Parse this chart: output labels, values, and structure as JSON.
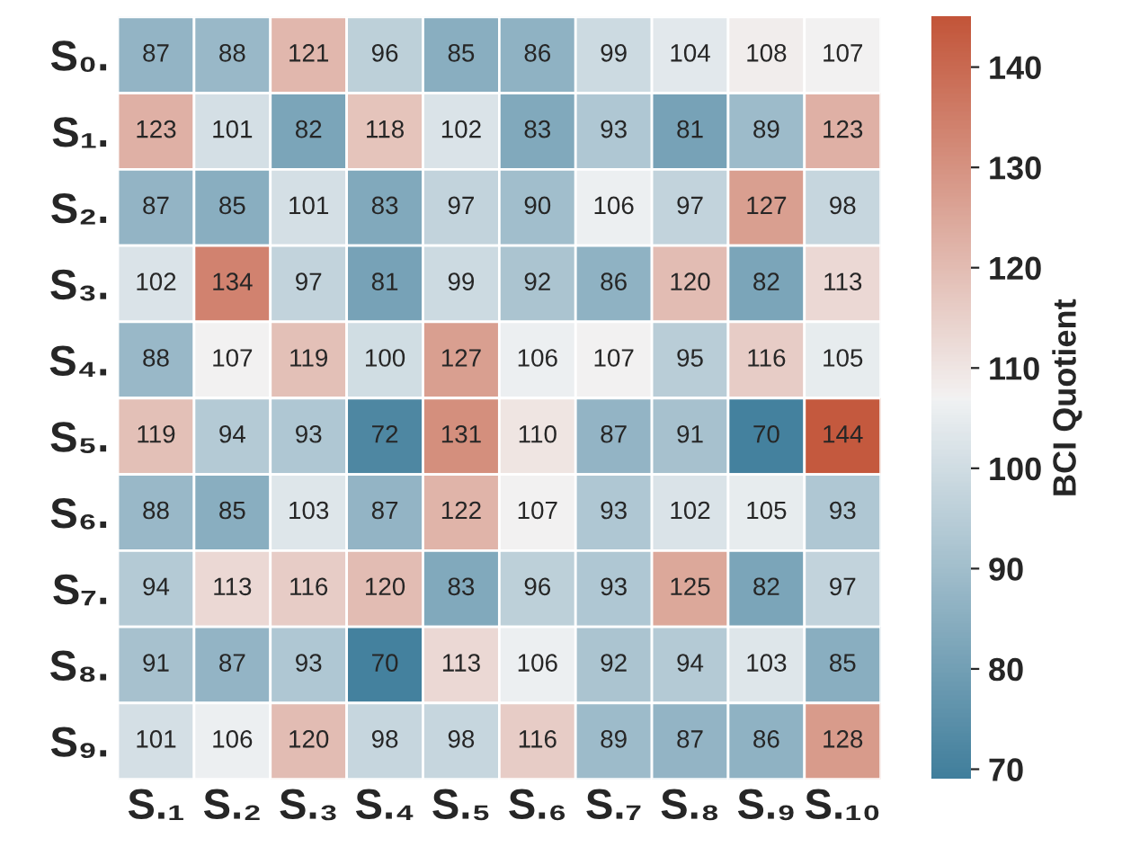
{
  "chart_data": {
    "type": "heatmap",
    "clabel": "BCI Quotient",
    "categories": [
      "S.₁",
      "S.₂",
      "S.₃",
      "S.₄",
      "S.₅",
      "S.₆",
      "S.₇",
      "S.₈",
      "S.₉",
      "S.₁₀"
    ],
    "y_categories": [
      "S₀.",
      "S₁.",
      "S₂.",
      "S₃.",
      "S₄.",
      "S₅.",
      "S₆.",
      "S₇.",
      "S₈.",
      "S₉."
    ],
    "cells": [
      [
        87,
        88,
        121,
        96,
        85,
        86,
        99,
        104,
        108,
        107
      ],
      [
        123,
        101,
        82,
        118,
        102,
        83,
        93,
        81,
        89,
        123
      ],
      [
        87,
        85,
        101,
        83,
        97,
        90,
        106,
        97,
        127,
        98
      ],
      [
        102,
        134,
        97,
        81,
        99,
        92,
        86,
        120,
        82,
        113
      ],
      [
        88,
        107,
        119,
        100,
        127,
        106,
        107,
        95,
        116,
        105
      ],
      [
        119,
        94,
        93,
        72,
        131,
        110,
        87,
        91,
        70,
        144
      ],
      [
        88,
        85,
        103,
        87,
        122,
        107,
        93,
        102,
        105,
        93
      ],
      [
        94,
        113,
        116,
        120,
        83,
        96,
        93,
        125,
        82,
        97
      ],
      [
        91,
        87,
        93,
        70,
        113,
        106,
        92,
        94,
        103,
        85
      ],
      [
        101,
        106,
        120,
        98,
        98,
        116,
        89,
        87,
        86,
        128
      ]
    ],
    "data_labels": true,
    "clim": [
      69,
      145
    ],
    "cticks": [
      70,
      80,
      90,
      100,
      110,
      120,
      130,
      140
    ]
  }
}
